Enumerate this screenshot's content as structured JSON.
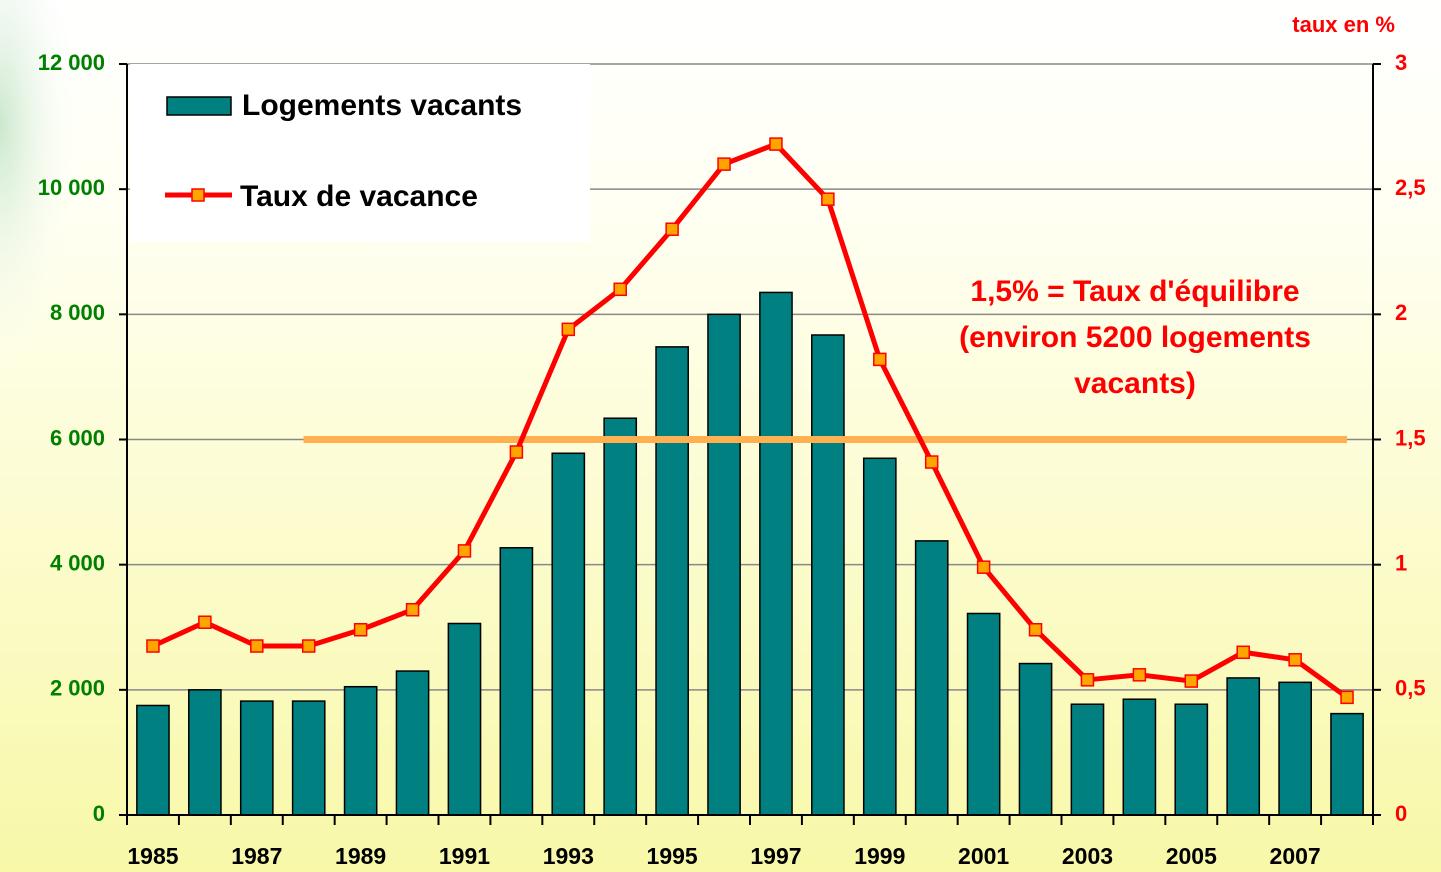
{
  "chart_data": {
    "type": "bar",
    "y2_axis_label": "taux en %",
    "annotation": [
      "1,5% = Taux d'équilibre",
      "(environ 5200 logements",
      "vacants)"
    ],
    "categories": [
      "1985",
      null,
      "1987",
      null,
      "1989",
      null,
      "1991",
      null,
      "1993",
      null,
      "1995",
      null,
      "1997",
      null,
      "1999",
      null,
      "2001",
      null,
      "2003",
      null,
      "2005",
      null,
      "2007",
      null
    ],
    "series": [
      {
        "name": "Logements vacants",
        "type": "bar",
        "color": "#008080",
        "values": [
          1750,
          2000,
          1820,
          1820,
          2050,
          2300,
          3060,
          4270,
          5780,
          6340,
          7480,
          8000,
          8350,
          7670,
          5700,
          4380,
          3220,
          2420,
          1770,
          1850,
          1770,
          2190,
          2120,
          1620
        ]
      },
      {
        "name": "Taux de vacance",
        "type": "line",
        "axis": "y2",
        "color": "#ff0000",
        "marker_color": "#ffa500",
        "values": [
          0.675,
          0.77,
          0.675,
          0.675,
          0.74,
          0.82,
          1.055,
          1.45,
          1.94,
          2.1,
          2.34,
          2.6,
          2.68,
          2.46,
          1.82,
          1.41,
          0.99,
          0.74,
          0.54,
          0.56,
          0.535,
          0.65,
          0.62,
          0.47
        ]
      }
    ],
    "reference_line": {
      "value": 1.5,
      "axis": "y2",
      "color": "#ffb050"
    },
    "ylim": [
      0,
      12000
    ],
    "yticks": [
      0,
      {
        "value": 2000,
        "label": "2 000"
      },
      {
        "value": 4000,
        "label": "4 000"
      },
      {
        "value": 6000,
        "label": "6 000"
      },
      {
        "value": 8000,
        "label": "8 000"
      },
      {
        "value": 10000,
        "label": "10 000"
      },
      {
        "value": 12000,
        "label": "12 000"
      }
    ],
    "y2lim": [
      0,
      3
    ],
    "y2ticks": [
      0,
      {
        "value": 0.5,
        "label": "0,5"
      },
      1,
      {
        "value": 1.5,
        "label": "1,5"
      },
      2,
      {
        "value": 2.5,
        "label": "2,5"
      },
      3
    ],
    "grid": true,
    "legend": "top-left"
  }
}
